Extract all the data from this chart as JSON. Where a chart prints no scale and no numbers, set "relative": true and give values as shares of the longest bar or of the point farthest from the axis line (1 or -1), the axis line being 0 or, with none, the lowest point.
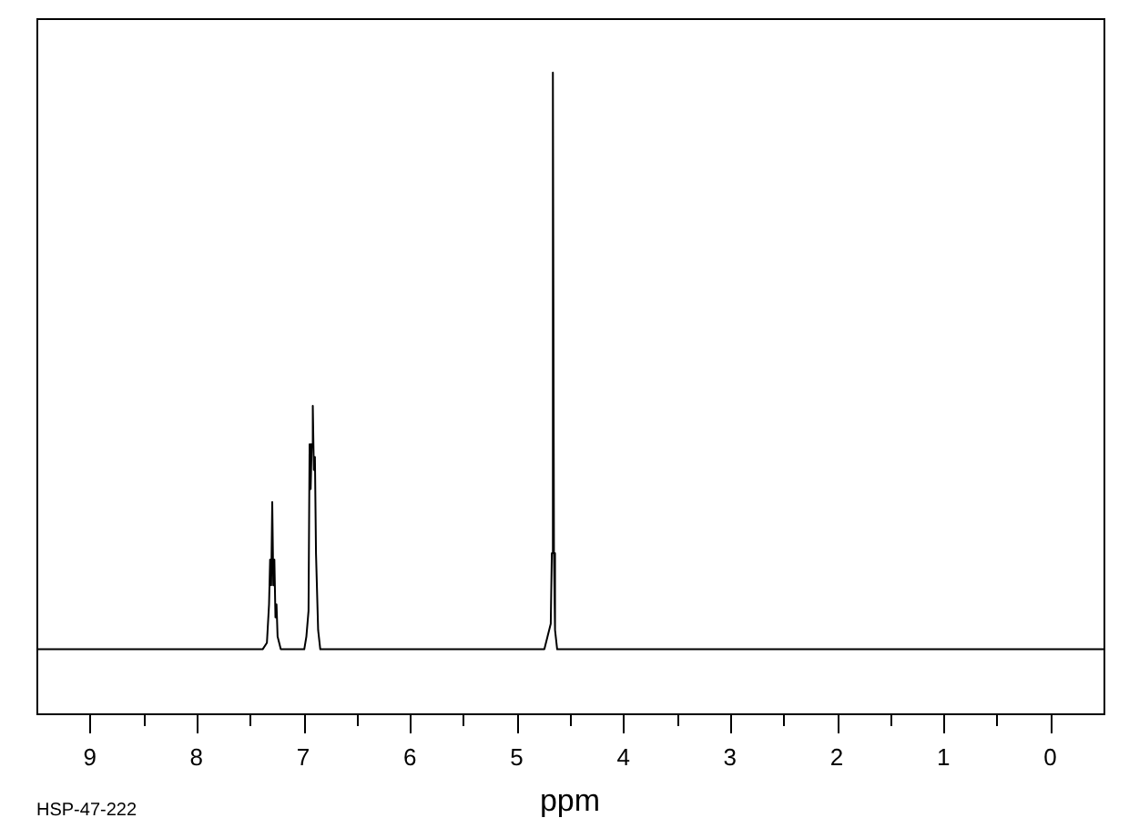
{
  "chart_data": {
    "type": "line",
    "xlabel": "ppm",
    "annotations": [
      "HSP-47-222"
    ],
    "relative": true,
    "color": "#000000",
    "xlim": [
      9.5,
      -0.5
    ],
    "xticks": [
      9,
      {
        "value": 8.5,
        "label": null
      },
      8,
      {
        "value": 7.5,
        "label": null
      },
      7,
      {
        "value": 6.5,
        "label": null
      },
      6,
      {
        "value": 5.5,
        "label": null
      },
      5,
      {
        "value": 4.5,
        "label": null
      },
      4,
      {
        "value": 3.5,
        "label": null
      },
      3,
      {
        "value": 2.5,
        "label": null
      },
      2,
      {
        "value": 1.5,
        "label": null
      },
      1,
      {
        "value": 0.5,
        "label": null
      },
      0
    ],
    "x": [
      9.5,
      7.38,
      7.34,
      7.32,
      7.31,
      7.3,
      7.29,
      7.28,
      7.27,
      7.26,
      7.25,
      7.24,
      7.21,
      6.99,
      6.97,
      6.95,
      6.94,
      6.93,
      6.92,
      6.91,
      6.9,
      6.89,
      6.88,
      6.86,
      6.84,
      4.74,
      4.71,
      4.68,
      4.67,
      4.66,
      4.65,
      4.64,
      4.62,
      -0.5
    ],
    "values": [
      0.1,
      0.1,
      0.11,
      0.17,
      0.24,
      0.2,
      0.33,
      0.2,
      0.24,
      0.15,
      0.17,
      0.12,
      0.1,
      0.1,
      0.12,
      0.16,
      0.42,
      0.35,
      0.42,
      0.48,
      0.38,
      0.4,
      0.25,
      0.13,
      0.1,
      0.1,
      0.12,
      0.14,
      0.25,
      1,
      0.25,
      0.13,
      0.1,
      0.1
    ]
  }
}
